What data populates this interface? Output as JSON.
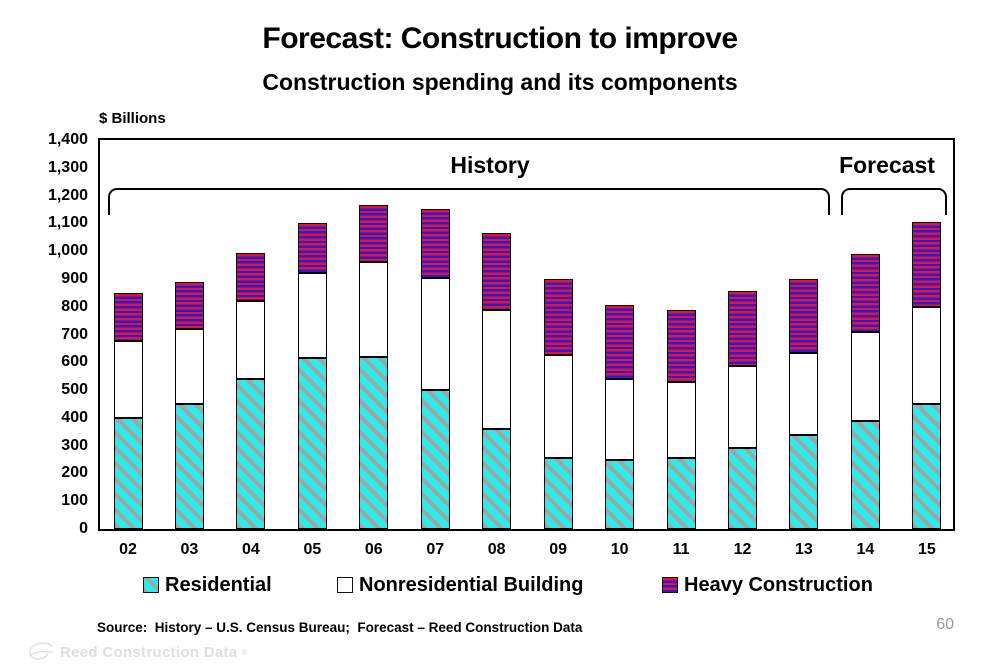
{
  "page": {
    "title": "Forecast: Construction to improve",
    "subtitle": "Construction spending and its components",
    "source_text": "Source:  History – U.S. Census Bureau;  Forecast – Reed Construction Data",
    "page_number": "60",
    "footer_logo": {
      "text": "Reed Construction Data",
      "registered_mark": "®"
    }
  },
  "chart_data": {
    "type": "bar",
    "stacked": true,
    "units_label": "$ Billions",
    "grid": false,
    "legend_position": "bottom",
    "x_categories": [
      "02",
      "03",
      "04",
      "05",
      "06",
      "07",
      "08",
      "09",
      "10",
      "11",
      "12",
      "13",
      "14",
      "15"
    ],
    "y_axis": {
      "min": 0,
      "max": 1400,
      "tick_step": 100,
      "tick_labels_top_down": [
        "1,400",
        "1,300",
        "1,200",
        "1,100",
        "1,000",
        "900",
        "800",
        "700",
        "600",
        "500",
        "400",
        "300",
        "200",
        "100",
        "0"
      ]
    },
    "series": [
      {
        "name": "Residential",
        "pattern": "cyan-diagonal-hatch",
        "color": "#2FEAEA",
        "hatch_color": "#9FA5A5",
        "values": [
          400,
          450,
          540,
          615,
          620,
          500,
          360,
          255,
          250,
          255,
          290,
          340,
          390,
          450
        ]
      },
      {
        "name": "Nonresidential Building",
        "pattern": "solid-white",
        "color": "#FFFFFF",
        "values": [
          275,
          270,
          280,
          305,
          340,
          405,
          430,
          370,
          290,
          275,
          295,
          295,
          320,
          350
        ]
      },
      {
        "name": "Heavy Construction",
        "pattern": "red-blue-horizontal-stripes",
        "color": "#1E1EE4",
        "stripe_color": "#EE1122",
        "values": [
          175,
          170,
          175,
          180,
          205,
          245,
          275,
          275,
          265,
          260,
          270,
          265,
          280,
          305
        ]
      }
    ],
    "stack_totals": [
      850,
      890,
      995,
      1100,
      1165,
      1150,
      1065,
      900,
      805,
      790,
      855,
      900,
      990,
      1105
    ],
    "annotations": [
      {
        "label": "History",
        "covers_categories": "02–13"
      },
      {
        "label": "Forecast",
        "covers_categories": "14–15"
      }
    ]
  },
  "legend": {
    "items": [
      "Residential",
      "Nonresidential Building",
      "Heavy Construction"
    ]
  }
}
